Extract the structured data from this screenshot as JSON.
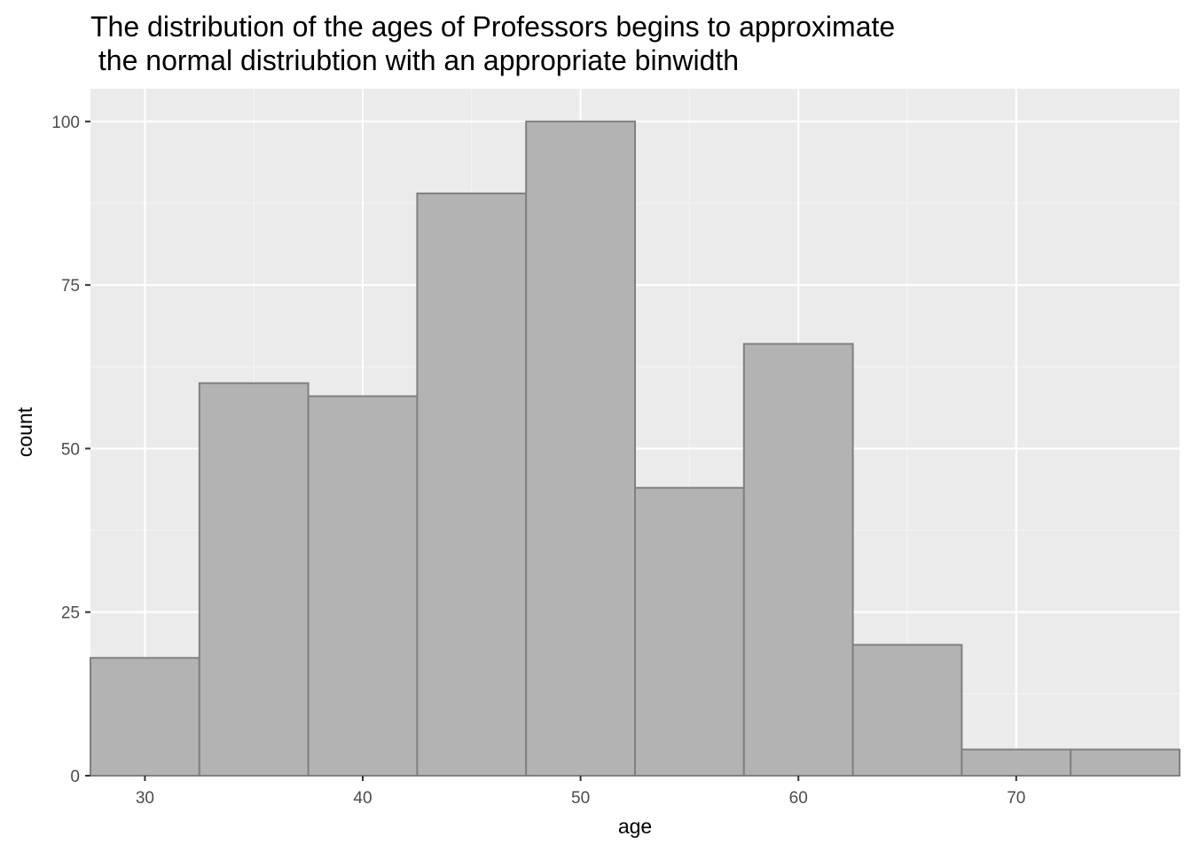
{
  "chart_data": {
    "type": "bar",
    "title_lines": [
      "The distribution of the ages of Professors begins to approximate",
      " the normal distriubtion with an appropriate binwidth"
    ],
    "xlabel": "age",
    "ylabel": "count",
    "bin_width": 5,
    "bins": [
      {
        "center": 30,
        "count": 18
      },
      {
        "center": 35,
        "count": 60
      },
      {
        "center": 40,
        "count": 58
      },
      {
        "center": 45,
        "count": 89
      },
      {
        "center": 50,
        "count": 100
      },
      {
        "center": 55,
        "count": 44
      },
      {
        "center": 60,
        "count": 66
      },
      {
        "center": 65,
        "count": 20
      },
      {
        "center": 70,
        "count": 4
      },
      {
        "center": 75,
        "count": 4
      }
    ],
    "xlim": [
      27.5,
      77.5
    ],
    "ylim": [
      0,
      105
    ],
    "x_ticks": [
      30,
      40,
      50,
      60,
      70
    ],
    "y_ticks": [
      0,
      25,
      50,
      75,
      100
    ],
    "grid": true,
    "legend": "none",
    "colors": {
      "panel": "#ebebeb",
      "bar_fill": "#b3b3b3",
      "bar_outline": "#808080",
      "grid": "#ffffff",
      "tick_label": "#4d4d4d"
    }
  }
}
